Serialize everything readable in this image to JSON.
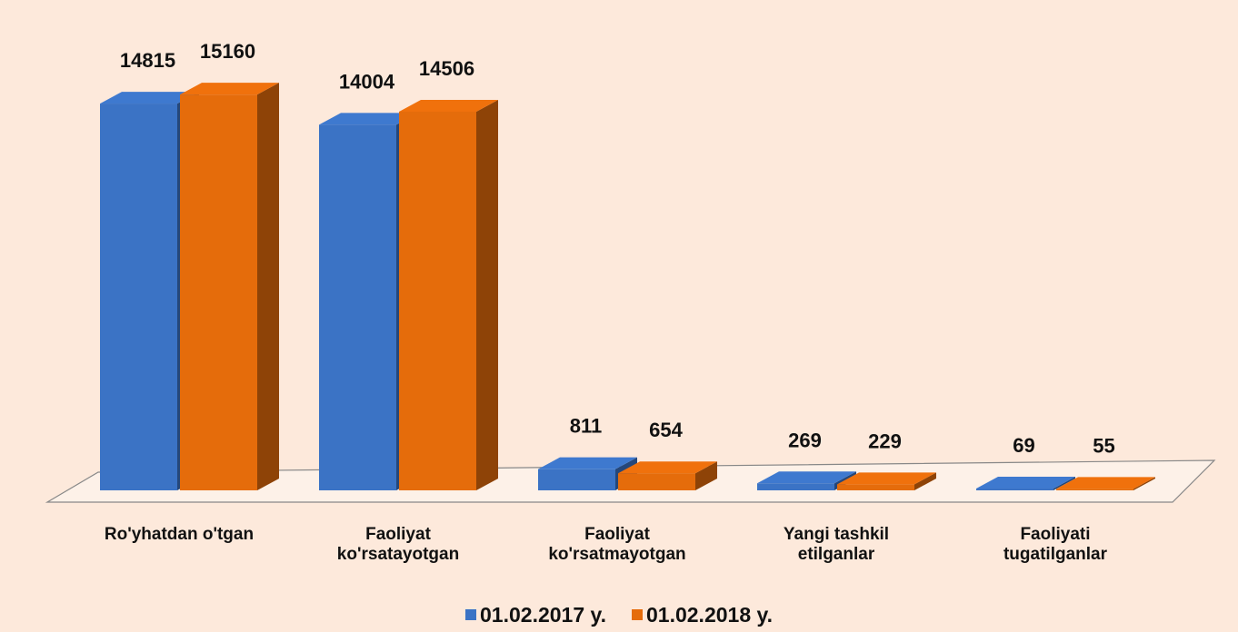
{
  "chart_data": {
    "type": "bar3d",
    "categories": [
      "Ro'yhatdan o'tgan",
      "Faoliyat ko'rsatayotgan",
      "Faoliyat ko'rsatmayotgan",
      "Yangi tashkil etilganlar",
      "Faoliyati tugatilganlar"
    ],
    "series": [
      {
        "name": "01.02.2017 y.",
        "color": "#3b73c5",
        "values": [
          14815,
          14004,
          811,
          269,
          69
        ]
      },
      {
        "name": "01.02.2018 y.",
        "color": "#e56c0b",
        "values": [
          15160,
          14506,
          654,
          229,
          55
        ]
      }
    ],
    "ylim": [
      0,
      16000
    ]
  }
}
